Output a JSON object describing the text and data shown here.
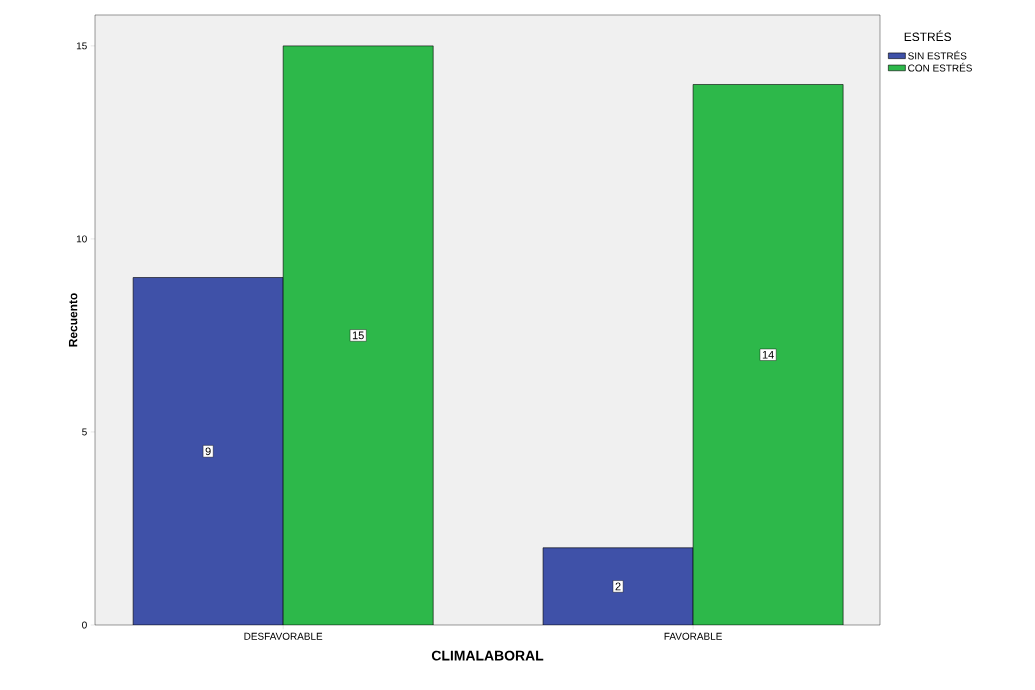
{
  "chart_data": {
    "type": "bar",
    "xlabel": "CLIMALABORAL",
    "ylabel": "Recuento",
    "legend_title": "ESTRÉS",
    "categories": [
      "DESFAVORABLE",
      "FAVORABLE"
    ],
    "series": [
      {
        "name": "SIN ESTRÉS",
        "color": "#3f51a8",
        "values": [
          9,
          2
        ]
      },
      {
        "name": "CON ESTRÉS",
        "color": "#2db84a",
        "values": [
          15,
          14
        ]
      }
    ],
    "ylim": [
      0,
      15.8
    ],
    "yticks": [
      0,
      5,
      10,
      15
    ],
    "data_labels": true,
    "legend": "top right"
  }
}
